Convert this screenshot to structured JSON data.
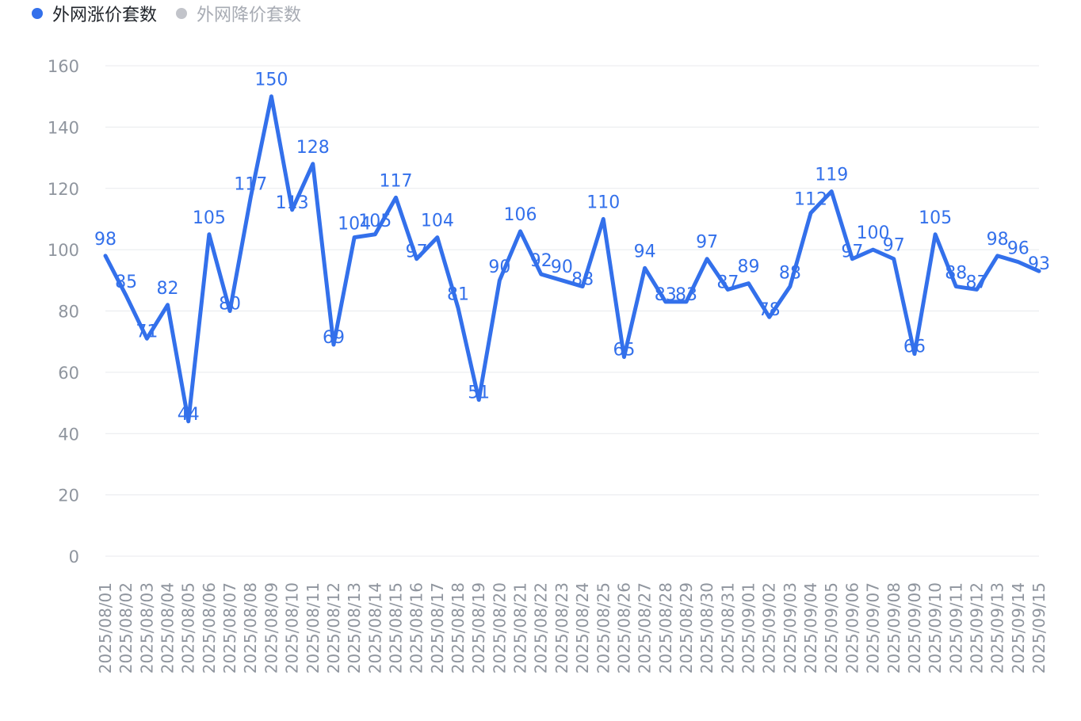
{
  "colors": {
    "primary": "#3370eb",
    "inactive": "#c2c4ca",
    "legend_active_text": "#1f2329",
    "legend_inactive_text": "#a7abb3",
    "axis_text": "#8f959e",
    "grid": "#e8eaed"
  },
  "legend": {
    "items": [
      {
        "label": "外网涨价套数",
        "active": true
      },
      {
        "label": "外网降价套数",
        "active": false
      }
    ]
  },
  "chart_data": {
    "type": "line",
    "ylim": [
      0,
      160
    ],
    "yticks": [
      0,
      20,
      40,
      60,
      80,
      100,
      120,
      140,
      160
    ],
    "legend_position": "top-left",
    "grid": true,
    "categories": [
      "2025/08/01",
      "2025/08/02",
      "2025/08/03",
      "2025/08/04",
      "2025/08/05",
      "2025/08/06",
      "2025/08/07",
      "2025/08/08",
      "2025/08/09",
      "2025/08/10",
      "2025/08/11",
      "2025/08/12",
      "2025/08/13",
      "2025/08/14",
      "2025/08/15",
      "2025/08/16",
      "2025/08/17",
      "2025/08/18",
      "2025/08/19",
      "2025/08/20",
      "2025/08/21",
      "2025/08/22",
      "2025/08/23",
      "2025/08/24",
      "2025/08/25",
      "2025/08/26",
      "2025/08/27",
      "2025/08/28",
      "2025/08/29",
      "2025/08/30",
      "2025/08/31",
      "2025/09/01",
      "2025/09/02",
      "2025/09/03",
      "2025/09/04",
      "2025/09/05",
      "2025/09/06",
      "2025/09/07",
      "2025/09/08",
      "2025/09/09",
      "2025/09/10",
      "2025/09/11",
      "2025/09/12",
      "2025/09/13",
      "2025/09/14",
      "2025/09/15"
    ],
    "series": [
      {
        "name": "外网涨价套数",
        "values": [
          98,
          85,
          71,
          82,
          44,
          105,
          80,
          117,
          150,
          113,
          128,
          69,
          104,
          105,
          117,
          97,
          104,
          81,
          51,
          90,
          106,
          92,
          90,
          88,
          110,
          65,
          94,
          83,
          83,
          97,
          87,
          89,
          78,
          88,
          112,
          119,
          97,
          100,
          97,
          66,
          105,
          88,
          87,
          98,
          96,
          93
        ]
      }
    ]
  }
}
